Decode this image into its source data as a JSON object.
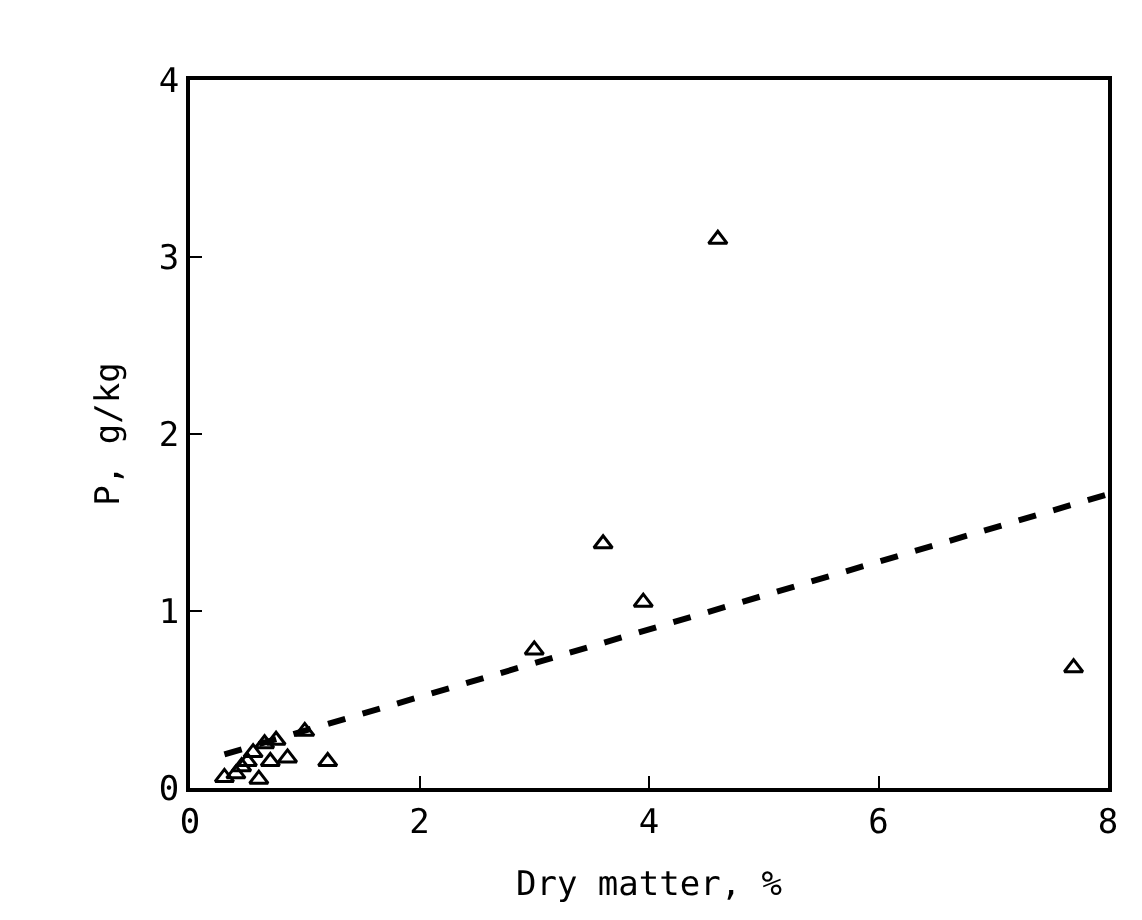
{
  "chart_data": {
    "type": "scatter",
    "xlabel": "Dry matter, %",
    "ylabel": "P, g/kg",
    "xlim": [
      0,
      8
    ],
    "ylim": [
      0,
      4
    ],
    "xticks": [
      0,
      2,
      4,
      6,
      8
    ],
    "yticks": [
      0,
      1,
      2,
      3,
      4
    ],
    "series": [
      {
        "color": "#000000",
        "marker": "triangle",
        "x": [
          0.3,
          0.4,
          0.45,
          0.5,
          0.55,
          0.6,
          0.65,
          0.7,
          0.75,
          0.85,
          1.0,
          1.2,
          3.0,
          3.6,
          3.95,
          4.6,
          7.7
        ],
        "values": [
          0.06,
          0.08,
          0.12,
          0.15,
          0.2,
          0.05,
          0.25,
          0.15,
          0.27,
          0.17,
          0.32,
          0.15,
          0.78,
          1.38,
          1.05,
          3.1,
          0.68
        ]
      },
      {
        "type": "line",
        "color": "#000000",
        "line_style": "dashed",
        "x": [
          0.3,
          8
        ],
        "values": [
          0.19,
          1.66
        ]
      }
    ]
  }
}
